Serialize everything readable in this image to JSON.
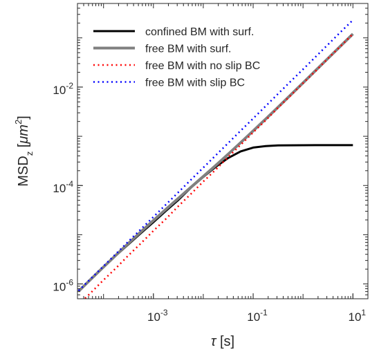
{
  "chart_data": {
    "type": "line",
    "log_x": true,
    "log_y": true,
    "xlabel": [
      "τ",
      " [s]"
    ],
    "ylabel": [
      "MSD",
      "z",
      " [",
      "μm",
      "2",
      "]"
    ],
    "x": [
      3.16e-05,
      5.62e-05,
      0.0001,
      0.000178,
      0.000316,
      0.000562,
      0.001,
      0.00178,
      0.00316,
      0.00562,
      0.01,
      0.0178,
      0.0316,
      0.0562,
      0.1,
      0.178,
      0.316,
      0.562,
      1,
      1.78,
      3.16,
      5.62,
      10
    ],
    "series": [
      {
        "name": "confined BM with surf.",
        "color": "#000000",
        "style": "solid",
        "values": [
          7.1e-07,
          1.26e-06,
          2.2e-06,
          3.8e-06,
          6.4e-06,
          1.08e-05,
          1.8e-05,
          3.05e-05,
          5.1e-05,
          9e-05,
          0.000149,
          0.00024,
          0.000363,
          0.000494,
          0.000589,
          0.000633,
          0.000651,
          0.000657,
          0.000659,
          0.00066,
          0.00066,
          0.00066,
          0.00066
        ]
      },
      {
        "name": "free BM with surf.",
        "color": "#808080",
        "style": "solid",
        "values": [
          7.1e-07,
          1.26e-06,
          2.21e-06,
          3.86e-06,
          6.67e-06,
          1.15e-05,
          1.95e-05,
          3.29e-05,
          5.5e-05,
          9.17e-05,
          0.000153,
          0.000257,
          0.000435,
          0.000745,
          0.00129,
          0.00224,
          0.00392,
          0.0069,
          0.0122,
          0.0216,
          0.0382,
          0.0678,
          0.12
        ]
      },
      {
        "name": "free BM with no slip BC",
        "color": "#ff0000",
        "style": "dotted",
        "values": [
          3.8e-07,
          6.7e-07,
          1.2e-06,
          2.1e-06,
          3.8e-06,
          6.7e-06,
          1.2e-05,
          2.1e-05,
          3.8e-05,
          6.7e-05,
          0.00012,
          0.00021,
          0.00038,
          0.00067,
          0.0012,
          0.0021,
          0.0038,
          0.0067,
          0.012,
          0.021,
          0.038,
          0.067,
          0.12
        ]
      },
      {
        "name": "free BM with slip BC",
        "color": "#0000ff",
        "style": "dotted",
        "values": [
          7.3e-07,
          1.3e-06,
          2.3e-06,
          4.1e-06,
          7.3e-06,
          1.3e-05,
          2.3e-05,
          4.1e-05,
          7.3e-05,
          0.00013,
          0.00023,
          0.00041,
          0.00073,
          0.0013,
          0.0023,
          0.0041,
          0.0073,
          0.013,
          0.023,
          0.041,
          0.073,
          0.13,
          0.23
        ]
      }
    ],
    "xlim": [
      3e-05,
      20
    ],
    "ylim": [
      5e-07,
      0.5
    ],
    "xticks": [
      {
        "value": 0.001,
        "label": "10",
        "exponent": "-3"
      },
      {
        "value": 0.1,
        "label": "10",
        "exponent": "-1"
      },
      {
        "value": 10,
        "label": "10",
        "exponent": "1"
      }
    ],
    "yticks": [
      {
        "value": 1e-06,
        "label": "10",
        "exponent": "-6"
      },
      {
        "value": 0.0001,
        "label": "10",
        "exponent": "-4"
      },
      {
        "value": 0.01,
        "label": "10",
        "exponent": "-2"
      }
    ],
    "legend": "top-left",
    "grid": false
  }
}
